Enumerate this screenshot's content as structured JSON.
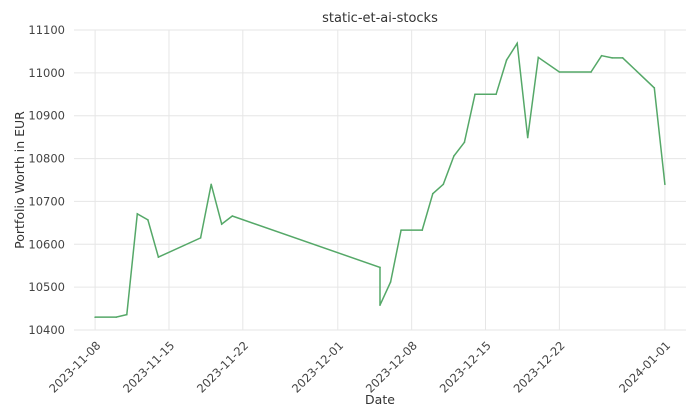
{
  "chart_data": {
    "type": "line",
    "title": "static-et-ai-stocks",
    "xlabel": "Date",
    "ylabel": "Portfolio Worth in EUR",
    "x_range": [
      "2023-11-06",
      "2024-01-03"
    ],
    "ylim": [
      10400,
      11100
    ],
    "x_ticks": [
      "2023-11-08",
      "2023-11-15",
      "2023-11-22",
      "2023-12-01",
      "2023-12-08",
      "2023-12-15",
      "2023-12-22",
      "2024-01-01"
    ],
    "y_ticks": [
      10400,
      10500,
      10600,
      10700,
      10800,
      10900,
      11000,
      11100
    ],
    "grid": true,
    "line_color": "#55a868",
    "series": [
      {
        "x": [
          "2023-11-08",
          "2023-11-10",
          "2023-11-11",
          "2023-11-12",
          "2023-11-13",
          "2023-11-14",
          "2023-11-18",
          "2023-11-19",
          "2023-11-20",
          "2023-11-21",
          "2023-12-05",
          "2023-12-05",
          "2023-12-06",
          "2023-12-07",
          "2023-12-09",
          "2023-12-10",
          "2023-12-11",
          "2023-12-12",
          "2023-12-13",
          "2023-12-14",
          "2023-12-16",
          "2023-12-17",
          "2023-12-18",
          "2023-12-19",
          "2023-12-20",
          "2023-12-22",
          "2023-12-25",
          "2023-12-26",
          "2023-12-27",
          "2023-12-28",
          "2023-12-31",
          "2024-01-01"
        ],
        "y": [
          10430,
          10430,
          10436,
          10671,
          10657,
          10570,
          10615,
          10740,
          10647,
          10666,
          10546,
          10458,
          10512,
          10633,
          10633,
          10718,
          10740,
          10806,
          10838,
          10950,
          10950,
          11030,
          11069,
          10849,
          11036,
          11002,
          11002,
          11040,
          11035,
          11035,
          10965,
          10740
        ]
      }
    ]
  }
}
